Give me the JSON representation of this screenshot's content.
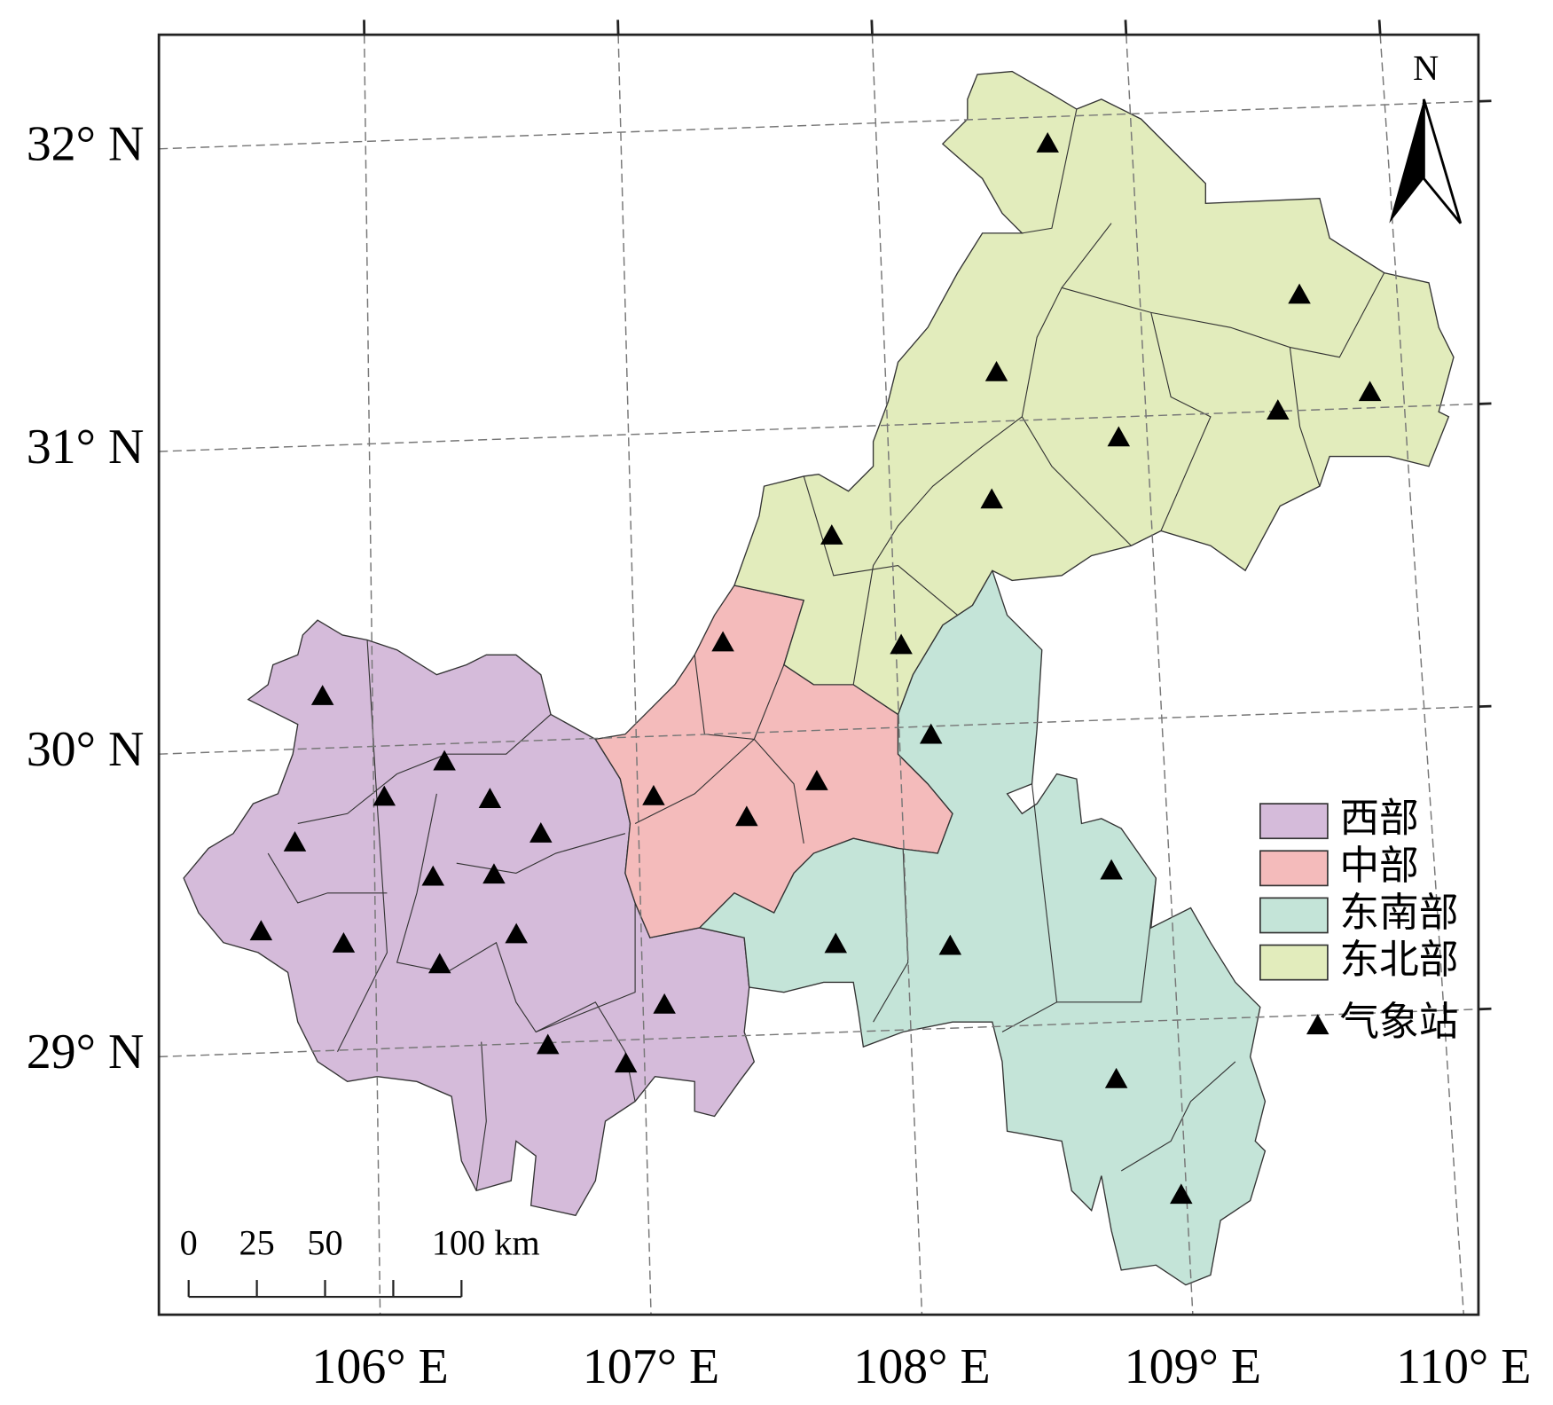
{
  "map": {
    "lat_ticks": [
      {
        "value": 32,
        "label": "32° N"
      },
      {
        "value": 31,
        "label": "31° N"
      },
      {
        "value": 30,
        "label": "30° N"
      },
      {
        "value": 29,
        "label": "29° N"
      }
    ],
    "lon_ticks": [
      {
        "value": 106,
        "label": "106° E"
      },
      {
        "value": 107,
        "label": "107° E"
      },
      {
        "value": 108,
        "label": "108° E"
      },
      {
        "value": 109,
        "label": "109° E"
      },
      {
        "value": 110,
        "label": "110° E"
      }
    ],
    "north_label": "N",
    "scale_ticks": [
      0,
      25,
      50,
      {
        "value": 75,
        "label": null
      },
      {
        "value": 100,
        "label": "100 km"
      }
    ],
    "legend": [
      {
        "name": "西部",
        "color": "#d5bbda"
      },
      {
        "name": "中部",
        "color": "#f4bbbb"
      },
      {
        "name": "东南部",
        "color": "#c4e4d8"
      },
      {
        "name": "东北部",
        "color": "#e2ecbc"
      }
    ],
    "stations": {
      "name": "气象站",
      "lon": [
        108.67,
        109.62,
        108.43,
        109.87,
        109.51,
        108.89,
        108.39,
        107.77,
        107.34,
        108.02,
        105.81,
        108.12,
        106.27,
        106.04,
        106.44,
        107.06,
        107.68,
        105.7,
        106.63,
        107.41,
        106.22,
        106.45,
        108.78,
        105.57,
        105.88,
        106.53,
        107.73,
        108.16,
        106.24,
        107.08,
        106.64,
        106.93,
        108.76,
        108.98
      ],
      "lat": [
        31.91,
        31.38,
        31.16,
        31.05,
        31.0,
        30.93,
        30.74,
        30.64,
        30.3,
        30.27,
        30.17,
        29.97,
        29.94,
        29.83,
        29.81,
        29.8,
        29.83,
        29.69,
        29.69,
        29.72,
        29.56,
        29.56,
        29.5,
        29.4,
        29.35,
        29.36,
        29.29,
        29.27,
        29.27,
        29.11,
        28.99,
        28.92,
        28.81,
        28.42
      ]
    }
  }
}
